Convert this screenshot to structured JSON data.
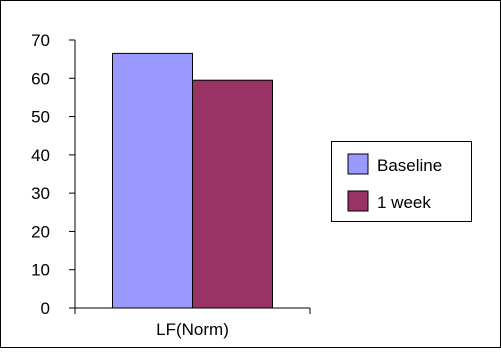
{
  "chart_data": {
    "type": "bar",
    "categories": [
      "LF(Norm)"
    ],
    "series": [
      {
        "name": "Baseline",
        "values": [
          66.5
        ],
        "color": "#9999ff"
      },
      {
        "name": "1 week",
        "values": [
          59.5
        ],
        "color": "#993366"
      }
    ],
    "ylim": [
      0,
      70
    ],
    "yticks": [
      0,
      10,
      20,
      30,
      40,
      50,
      60,
      70
    ],
    "grid": false,
    "legend_position": "right"
  }
}
